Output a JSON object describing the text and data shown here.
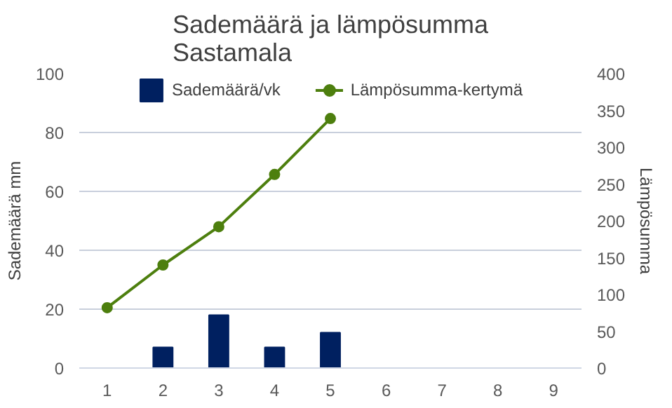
{
  "chart_data": {
    "type": "bar",
    "title": "Sademäärä ja lämpösumma\nSastamala",
    "ylabel": "Sademäärä mm",
    "y2label": "Lämpösumma",
    "categories": [
      "1",
      "2",
      "3",
      "4",
      "5",
      "6",
      "7",
      "8",
      "9"
    ],
    "series": [
      {
        "name": "Sademäärä/vk",
        "color": "#002060",
        "values": [
          0,
          7,
          18,
          7,
          12,
          null,
          null,
          null,
          null
        ]
      },
      {
        "name": "Lämpösumma-kertymä",
        "type": "line",
        "axis": "y2",
        "color": "#4d7f0e",
        "marker": "circle",
        "values": [
          82,
          140,
          192,
          263,
          339,
          null,
          null,
          null,
          null
        ]
      }
    ],
    "ylim": [
      0,
      100
    ],
    "yticks": [
      0,
      20,
      40,
      60,
      80,
      100
    ],
    "y2lim": [
      0,
      400
    ],
    "y2ticks": [
      0,
      50,
      100,
      150,
      200,
      250,
      300,
      350,
      400
    ],
    "grid": "y",
    "legend": "top"
  }
}
